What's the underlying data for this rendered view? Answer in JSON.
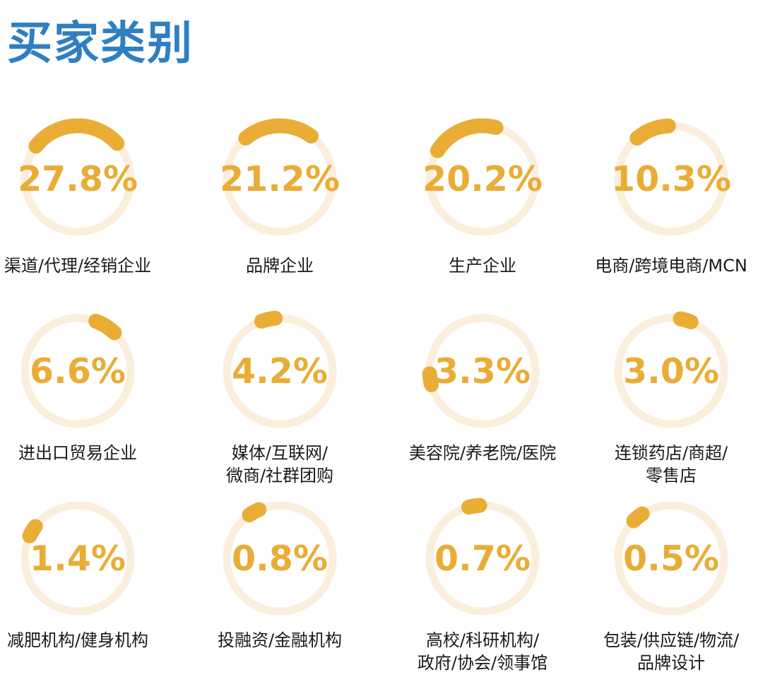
{
  "title": "买家类别",
  "colors": {
    "arc": "#e9ad36",
    "track": "#fbeedc",
    "value_text": "#e9ad36",
    "title": "#2f7fc1"
  },
  "chart_data": {
    "type": "pie",
    "title": "买家类别",
    "unit": "%",
    "series": [
      {
        "label_lines": [
          "渠道/代理/经销企业"
        ],
        "value": 27.8,
        "value_label": "27.8%"
      },
      {
        "label_lines": [
          "品牌企业"
        ],
        "value": 21.2,
        "value_label": "21.2%"
      },
      {
        "label_lines": [
          "生产企业"
        ],
        "value": 20.2,
        "value_label": "20.2%"
      },
      {
        "label_lines": [
          "电商/跨境电商/MCN"
        ],
        "value": 10.3,
        "value_label": "10.3%"
      },
      {
        "label_lines": [
          "进出口贸易企业"
        ],
        "value": 6.6,
        "value_label": "6.6%"
      },
      {
        "label_lines": [
          "媒体/互联网/",
          "微商/社群团购"
        ],
        "value": 4.2,
        "value_label": "4.2%"
      },
      {
        "label_lines": [
          "美容院/养老院/医院"
        ],
        "value": 3.3,
        "value_label": "3.3%"
      },
      {
        "label_lines": [
          "连锁药店/商超/",
          "零售店"
        ],
        "value": 3.0,
        "value_label": "3.0%"
      },
      {
        "label_lines": [
          "减肥机构/健身机构"
        ],
        "value": 1.4,
        "value_label": "1.4%"
      },
      {
        "label_lines": [
          "投融资/金融机构"
        ],
        "value": 0.8,
        "value_label": "0.8%"
      },
      {
        "label_lines": [
          "高校/科研机构/",
          "政府/协会/领事馆"
        ],
        "value": 0.7,
        "value_label": "0.7%"
      },
      {
        "label_lines": [
          "包装/供应链/物流/",
          "品牌设计"
        ],
        "value": 0.5,
        "value_label": "0.5%"
      }
    ]
  }
}
